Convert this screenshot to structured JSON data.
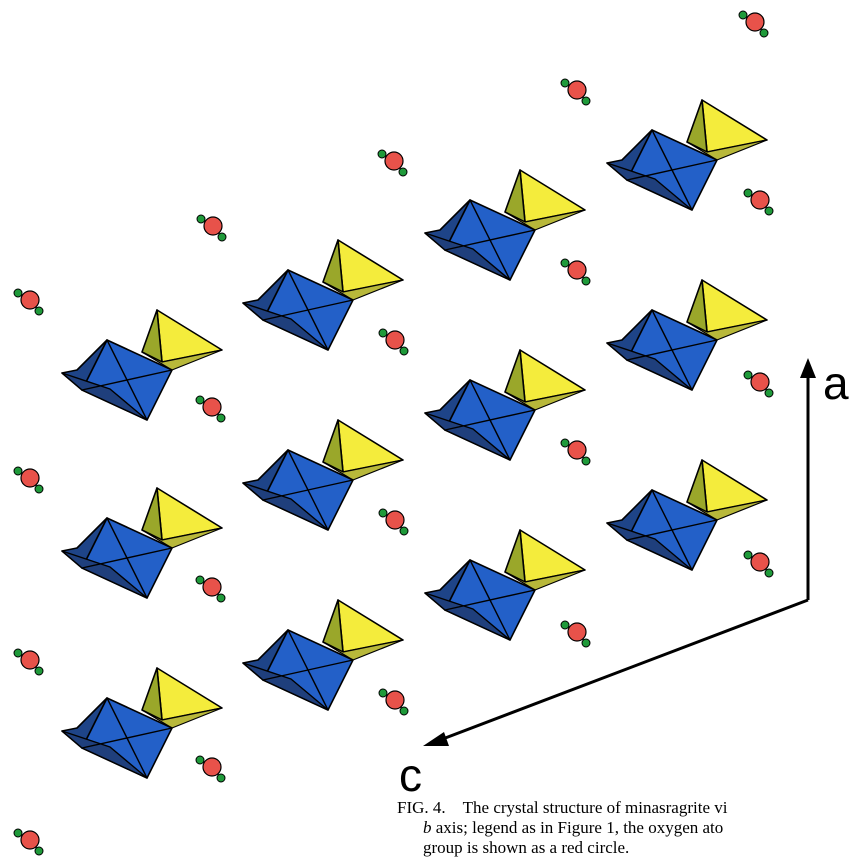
{
  "axes": [
    {
      "label": "a"
    },
    {
      "label": "c"
    }
  ],
  "caption": {
    "label": "FIG. 4.",
    "line1": "The crystal structure of minasragrite vi",
    "line2_italic": "b",
    "line2_rest": " axis; legend as in Figure 1, the oxygen ato",
    "line3": "group is shown as a red circle."
  },
  "legend_items": [
    {
      "name": "octahedron",
      "color": "#2360c8"
    },
    {
      "name": "tetrahedron",
      "color": "#f4ec3c"
    },
    {
      "name": "oxygen-atom",
      "color": "#e8524a"
    },
    {
      "name": "hydrogen-atom",
      "color": "#1f9a3a"
    }
  ]
}
